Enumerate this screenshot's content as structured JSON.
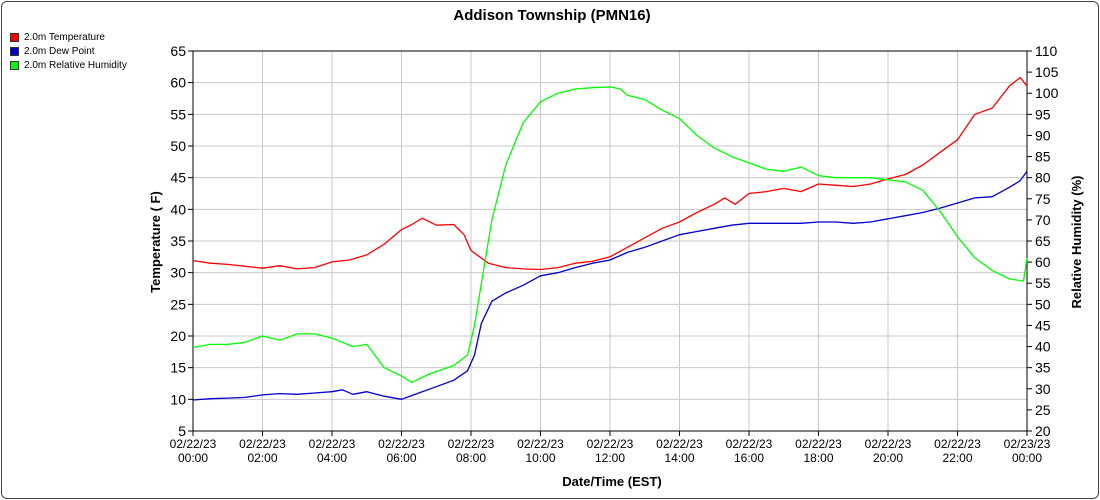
{
  "chart_data": {
    "type": "line",
    "title": "Addison Township (PMN16)",
    "xlabel": "Date/Time (EST)",
    "ylabel_left": "Temperature ( F)",
    "ylabel_right": "Relative Humidity (%)",
    "x_unit": "hours since 02/22/23 00:00",
    "xlim": [
      0,
      24
    ],
    "ylim_left": [
      5,
      65
    ],
    "ylim_right": [
      20,
      110
    ],
    "yticks_left": [
      5,
      10,
      15,
      20,
      25,
      30,
      35,
      40,
      45,
      50,
      55,
      60,
      65
    ],
    "yticks_right": [
      20,
      25,
      30,
      35,
      40,
      45,
      50,
      55,
      60,
      65,
      70,
      75,
      80,
      85,
      90,
      95,
      100,
      105,
      110
    ],
    "xticks": [
      {
        "x": 0,
        "date": "02/22/23",
        "time": "00:00"
      },
      {
        "x": 2,
        "date": "02/22/23",
        "time": "02:00"
      },
      {
        "x": 4,
        "date": "02/22/23",
        "time": "04:00"
      },
      {
        "x": 6,
        "date": "02/22/23",
        "time": "06:00"
      },
      {
        "x": 8,
        "date": "02/22/23",
        "time": "08:00"
      },
      {
        "x": 10,
        "date": "02/22/23",
        "time": "10:00"
      },
      {
        "x": 12,
        "date": "02/22/23",
        "time": "12:00"
      },
      {
        "x": 14,
        "date": "02/22/23",
        "time": "14:00"
      },
      {
        "x": 16,
        "date": "02/22/23",
        "time": "16:00"
      },
      {
        "x": 18,
        "date": "02/22/23",
        "time": "18:00"
      },
      {
        "x": 20,
        "date": "02/22/23",
        "time": "20:00"
      },
      {
        "x": 22,
        "date": "02/22/23",
        "time": "22:00"
      },
      {
        "x": 24,
        "date": "02/23/23",
        "time": "00:00"
      }
    ],
    "grid": true,
    "legend_position": "top-left",
    "series": [
      {
        "name": "2.0m Temperature",
        "color": "#ff0000",
        "axis": "left",
        "points": [
          [
            0,
            31.9
          ],
          [
            0.5,
            31.5
          ],
          [
            1,
            31.3
          ],
          [
            1.5,
            31.0
          ],
          [
            2,
            30.7
          ],
          [
            2.5,
            31.1
          ],
          [
            3,
            30.6
          ],
          [
            3.5,
            30.8
          ],
          [
            4,
            31.7
          ],
          [
            4.5,
            32.0
          ],
          [
            5,
            32.8
          ],
          [
            5.5,
            34.5
          ],
          [
            6,
            36.8
          ],
          [
            6.3,
            37.6
          ],
          [
            6.6,
            38.6
          ],
          [
            7,
            37.5
          ],
          [
            7.5,
            37.6
          ],
          [
            7.8,
            36.0
          ],
          [
            8,
            33.5
          ],
          [
            8.5,
            31.5
          ],
          [
            9,
            30.8
          ],
          [
            9.5,
            30.6
          ],
          [
            10,
            30.5
          ],
          [
            10.5,
            30.8
          ],
          [
            11,
            31.5
          ],
          [
            11.5,
            31.8
          ],
          [
            12,
            32.5
          ],
          [
            12.5,
            34.0
          ],
          [
            13,
            35.5
          ],
          [
            13.5,
            37.0
          ],
          [
            14,
            38.0
          ],
          [
            14.5,
            39.5
          ],
          [
            15,
            40.8
          ],
          [
            15.3,
            41.8
          ],
          [
            15.6,
            40.8
          ],
          [
            16,
            42.5
          ],
          [
            16.5,
            42.8
          ],
          [
            17,
            43.3
          ],
          [
            17.5,
            42.8
          ],
          [
            18,
            44.0
          ],
          [
            18.5,
            43.8
          ],
          [
            19,
            43.6
          ],
          [
            19.5,
            44.0
          ],
          [
            20,
            44.8
          ],
          [
            20.5,
            45.5
          ],
          [
            21,
            47.0
          ],
          [
            21.5,
            49.0
          ],
          [
            22,
            51.0
          ],
          [
            22.5,
            55.0
          ],
          [
            23,
            56.0
          ],
          [
            23.5,
            59.5
          ],
          [
            23.8,
            60.8
          ],
          [
            24,
            59.5
          ]
        ]
      },
      {
        "name": "2.0m Dew Point",
        "color": "#0000cc",
        "axis": "left",
        "points": [
          [
            0,
            9.9
          ],
          [
            0.5,
            10.1
          ],
          [
            1,
            10.2
          ],
          [
            1.5,
            10.3
          ],
          [
            2,
            10.7
          ],
          [
            2.5,
            10.9
          ],
          [
            3,
            10.8
          ],
          [
            3.5,
            11.0
          ],
          [
            4,
            11.2
          ],
          [
            4.3,
            11.5
          ],
          [
            4.6,
            10.8
          ],
          [
            5,
            11.2
          ],
          [
            5.5,
            10.5
          ],
          [
            6,
            10.0
          ],
          [
            6.3,
            10.6
          ],
          [
            7,
            12.0
          ],
          [
            7.5,
            13.0
          ],
          [
            7.9,
            14.5
          ],
          [
            8.1,
            17.0
          ],
          [
            8.3,
            22.0
          ],
          [
            8.6,
            25.5
          ],
          [
            9,
            26.8
          ],
          [
            9.5,
            28.0
          ],
          [
            10,
            29.5
          ],
          [
            10.5,
            30.0
          ],
          [
            11,
            30.8
          ],
          [
            11.5,
            31.5
          ],
          [
            12,
            32.0
          ],
          [
            12.5,
            33.2
          ],
          [
            13,
            34.0
          ],
          [
            13.5,
            35.0
          ],
          [
            14,
            36.0
          ],
          [
            14.5,
            36.5
          ],
          [
            15,
            37.0
          ],
          [
            15.5,
            37.5
          ],
          [
            16,
            37.8
          ],
          [
            16.5,
            37.8
          ],
          [
            17,
            37.8
          ],
          [
            17.5,
            37.8
          ],
          [
            18,
            38.0
          ],
          [
            18.5,
            38.0
          ],
          [
            19,
            37.8
          ],
          [
            19.5,
            38.0
          ],
          [
            20,
            38.5
          ],
          [
            20.5,
            39.0
          ],
          [
            21,
            39.5
          ],
          [
            21.5,
            40.2
          ],
          [
            22,
            41.0
          ],
          [
            22.5,
            41.8
          ],
          [
            23,
            42.0
          ],
          [
            23.5,
            43.5
          ],
          [
            23.8,
            44.5
          ],
          [
            24,
            46.0
          ]
        ]
      },
      {
        "name": "2.0m Relative Humidity",
        "color": "#00ff00",
        "axis": "right",
        "points": [
          [
            0,
            39.8
          ],
          [
            0.5,
            40.5
          ],
          [
            1,
            40.5
          ],
          [
            1.5,
            41.0
          ],
          [
            2,
            42.5
          ],
          [
            2.5,
            41.5
          ],
          [
            3,
            43.0
          ],
          [
            3.5,
            43.0
          ],
          [
            4,
            42.0
          ],
          [
            4.3,
            41.0
          ],
          [
            4.6,
            40.0
          ],
          [
            5,
            40.5
          ],
          [
            5.5,
            35.0
          ],
          [
            6,
            33.0
          ],
          [
            6.3,
            31.5
          ],
          [
            6.8,
            33.5
          ],
          [
            7.5,
            35.5
          ],
          [
            7.9,
            38.0
          ],
          [
            8.1,
            45.0
          ],
          [
            8.3,
            55.0
          ],
          [
            8.6,
            70.0
          ],
          [
            9,
            83.0
          ],
          [
            9.5,
            93.0
          ],
          [
            10,
            98.0
          ],
          [
            10.5,
            100.0
          ],
          [
            11,
            101.0
          ],
          [
            11.5,
            101.3
          ],
          [
            12,
            101.5
          ],
          [
            12.3,
            101.0
          ],
          [
            12.5,
            99.5
          ],
          [
            13,
            98.5
          ],
          [
            13.5,
            96.0
          ],
          [
            14,
            94.0
          ],
          [
            14.5,
            90.0
          ],
          [
            15,
            87.0
          ],
          [
            15.5,
            85.0
          ],
          [
            16,
            83.5
          ],
          [
            16.5,
            82.0
          ],
          [
            17,
            81.5
          ],
          [
            17.5,
            82.5
          ],
          [
            18,
            80.5
          ],
          [
            18.5,
            80.0
          ],
          [
            19,
            80.0
          ],
          [
            19.5,
            80.0
          ],
          [
            20,
            79.5
          ],
          [
            20.5,
            79.0
          ],
          [
            21,
            77.0
          ],
          [
            21.5,
            72.0
          ],
          [
            22,
            66.0
          ],
          [
            22.5,
            61.0
          ],
          [
            23,
            58.0
          ],
          [
            23.5,
            56.0
          ],
          [
            23.9,
            55.5
          ],
          [
            24,
            61.0
          ]
        ]
      }
    ]
  }
}
